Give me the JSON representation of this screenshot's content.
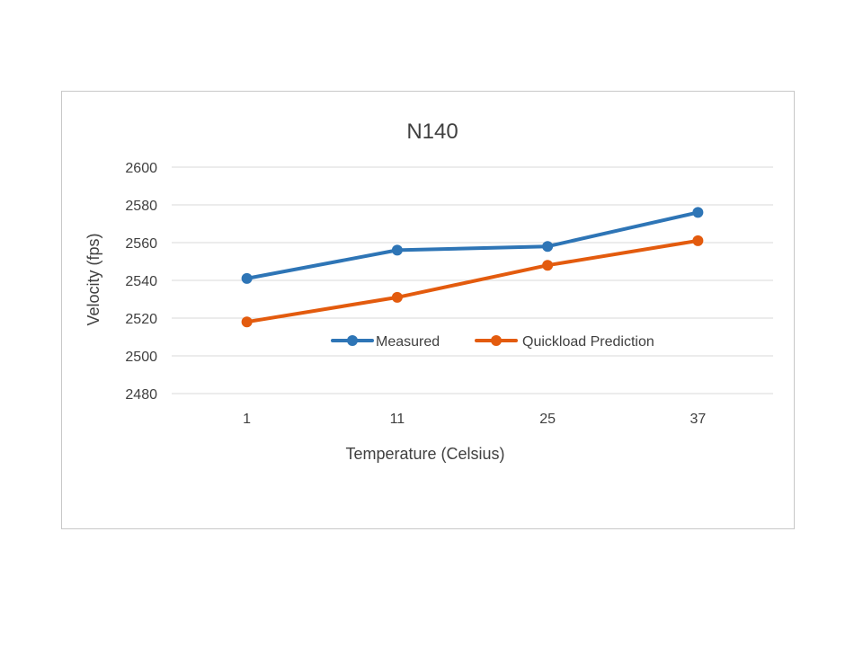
{
  "chart_data": {
    "type": "line",
    "title": "N140",
    "xlabel": "Temperature (Celsius)",
    "ylabel": "Velocity (fps)",
    "categories": [
      "1",
      "11",
      "25",
      "37"
    ],
    "ylim": [
      2480,
      2600
    ],
    "yticks": [
      "2480",
      "2500",
      "2520",
      "2540",
      "2560",
      "2580",
      "2600"
    ],
    "grid": true,
    "legend_position": "inside-center",
    "series": [
      {
        "name": "Measured",
        "color": "#2E75B6",
        "values": [
          2541,
          2556,
          2558,
          2576
        ]
      },
      {
        "name": "Quickload Prediction",
        "color": "#E35B0E",
        "values": [
          2518,
          2531,
          2548,
          2561
        ]
      }
    ]
  }
}
